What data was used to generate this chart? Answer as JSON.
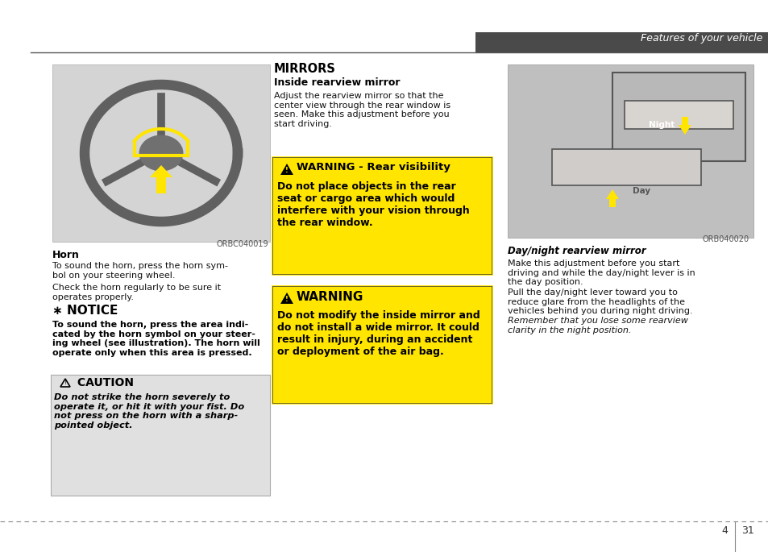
{
  "page_title": "Features of your vehicle",
  "header_bar_color": "#4a4a4a",
  "page_bg": "#ffffff",
  "page_num_left": "4",
  "page_num_right": "31",
  "section_mirrors_title": "MIRRORS",
  "section_mirrors_subtitle": "Inside rearview mirror",
  "mirrors_body": "Adjust the rearview mirror so that the\ncenter view through the rear window is\nseen. Make this adjustment before you\nstart driving.",
  "warning_rear_title": "WARNING - Rear visibility",
  "warning_rear_body": "Do not place objects in the rear\nseat or cargo area which would\ninterfere with your vision through\nthe rear window.",
  "warning2_title": "WARNING",
  "warning2_body": "Do not modify the inside mirror and\ndo not install a wide mirror. It could\nresult in injury, during an accident\nor deployment of the air bag.",
  "horn_title": "Horn",
  "horn_body1": "To sound the horn, press the horn sym-\nbol on your steering wheel.",
  "horn_body2": "Check the horn regularly to be sure it\noperates properly.",
  "notice_title": "∗ NOTICE",
  "notice_body": "To sound the horn, press the area indi-\ncated by the horn symbol on your steer-\ning wheel (see illustration). The horn will\noperate only when this area is pressed.",
  "caution_title": " CAUTION",
  "caution_body": "Do not strike the horn severely to\noperate it, or hit it with your fist. Do\nnot press on the horn with a sharp-\npointed object.",
  "daynight_title": "Day/night rearview mirror",
  "daynight_body1": "Make this adjustment before you start\ndriving and while the day/night lever is in\nthe day position.",
  "daynight_body2": "Pull the day/night lever toward you to\nreduce glare from the headlights of the\nvehicles behind you during night driving.",
  "daynight_body3": "Remember that you lose some rearview\nclarity in the night position.",
  "img_code_left": "ORBC040019",
  "img_code_right": "ORB040020",
  "text_color": "#111111",
  "warn1_bg": "#FFE500",
  "warn2_bg": "#FFE500",
  "caution_bg": "#e0e0e0",
  "caution_border": "#aaaaaa"
}
